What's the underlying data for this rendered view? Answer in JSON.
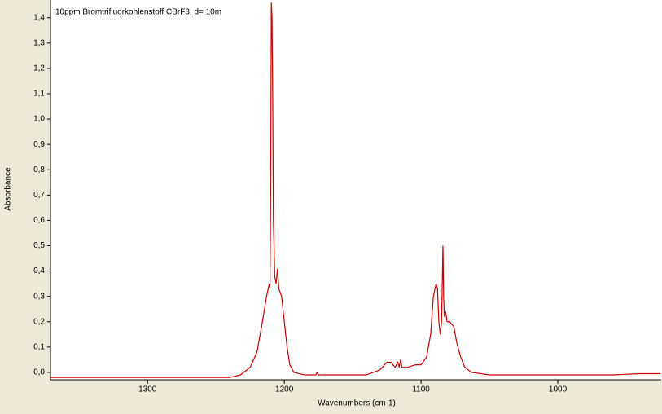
{
  "chart_data": {
    "type": "line",
    "annotation": "10ppm Bromtrifluorkohlenstoff CBrF3, d= 10m",
    "x_label": "Wavenumbers (cm-1)",
    "y_label": "Absorbance",
    "x": [
      1371,
      1300,
      1240,
      1232,
      1225,
      1220,
      1216,
      1213,
      1211,
      1210.5,
      1210,
      1209.5,
      1209,
      1208.5,
      1208,
      1207,
      1206,
      1205,
      1204,
      1202,
      1200,
      1198,
      1196,
      1193,
      1185,
      1177,
      1176,
      1175,
      1140,
      1130,
      1125,
      1122,
      1119,
      1117,
      1116,
      1115,
      1114,
      1110,
      1104,
      1100,
      1096,
      1093,
      1091,
      1089,
      1088,
      1087,
      1086,
      1085,
      1084,
      1083.5,
      1083,
      1082,
      1081,
      1079,
      1076,
      1074,
      1071,
      1068,
      1063,
      1050,
      1030,
      1000,
      960,
      940,
      925
    ],
    "values": [
      -0.02,
      -0.02,
      -0.02,
      -0.01,
      0.02,
      0.08,
      0.2,
      0.3,
      0.35,
      0.33,
      0.7,
      1.46,
      1.4,
      1.1,
      0.6,
      0.38,
      0.35,
      0.41,
      0.33,
      0.3,
      0.2,
      0.1,
      0.03,
      0.0,
      -0.01,
      -0.01,
      0.0,
      -0.01,
      -0.01,
      0.01,
      0.04,
      0.04,
      0.02,
      0.04,
      0.02,
      0.05,
      0.02,
      0.02,
      0.03,
      0.03,
      0.06,
      0.15,
      0.3,
      0.35,
      0.33,
      0.2,
      0.15,
      0.2,
      0.5,
      0.3,
      0.22,
      0.24,
      0.2,
      0.2,
      0.18,
      0.12,
      0.06,
      0.02,
      0.0,
      -0.01,
      -0.01,
      -0.01,
      -0.01,
      -0.005,
      -0.005
    ],
    "color": "#cc0000",
    "xlim": [
      1371,
      925
    ],
    "xticks": [
      1300,
      1200,
      1100,
      1000
    ],
    "ylim": [
      -0.026,
      1.47
    ],
    "yticks": [
      {
        "value": 0,
        "label": "0,0"
      },
      {
        "value": 0.1,
        "label": "0,1"
      },
      {
        "value": 0.2,
        "label": "0,2"
      },
      {
        "value": 0.3,
        "label": "0,3"
      },
      {
        "value": 0.4,
        "label": "0,4"
      },
      {
        "value": 0.5,
        "label": "0,5"
      },
      {
        "value": 0.6,
        "label": "0,6"
      },
      {
        "value": 0.7,
        "label": "0,7"
      },
      {
        "value": 0.8,
        "label": "0,8"
      },
      {
        "value": 0.9,
        "label": "0,9"
      },
      {
        "value": 1.0,
        "label": "1,0"
      },
      {
        "value": 1.1,
        "label": "1,1"
      },
      {
        "value": 1.2,
        "label": "1,2"
      },
      {
        "value": 1.3,
        "label": "1,3"
      },
      {
        "value": 1.4,
        "label": "1,4"
      }
    ]
  }
}
